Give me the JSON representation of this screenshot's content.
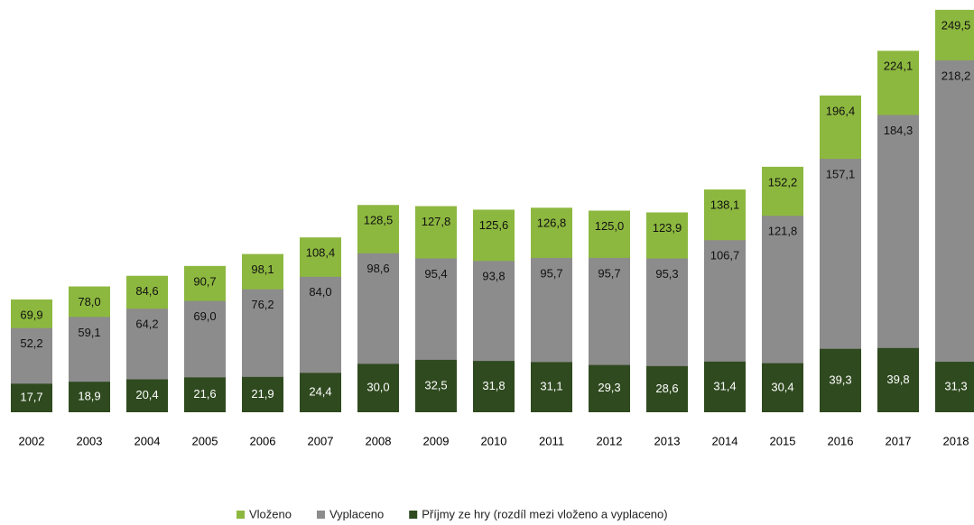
{
  "chart_data": {
    "type": "overlap-bar",
    "categories": [
      "2002",
      "2003",
      "2004",
      "2005",
      "2006",
      "2007",
      "2008",
      "2009",
      "2010",
      "2011",
      "2012",
      "2013",
      "2014",
      "2015",
      "2016",
      "2017",
      "2018"
    ],
    "ylim": [
      0,
      250
    ],
    "series": [
      {
        "name": "Vloženo",
        "color": "#8db83f",
        "values": [
          69.9,
          78.0,
          84.6,
          90.7,
          98.1,
          108.4,
          128.5,
          127.8,
          125.6,
          126.8,
          125.0,
          123.9,
          138.1,
          152.2,
          196.4,
          224.1,
          249.5
        ],
        "value_labels": [
          "69,9",
          "78,0",
          "84,6",
          "90,7",
          "98,1",
          "108,4",
          "128,5",
          "127,8",
          "125,6",
          "126,8",
          "125,0",
          "123,9",
          "138,1",
          "152,2",
          "196,4",
          "224,1",
          "249,5"
        ]
      },
      {
        "name": "Vyplaceno",
        "color": "#8c8c8c",
        "values": [
          52.2,
          59.1,
          64.2,
          69.0,
          76.2,
          84.0,
          98.6,
          95.4,
          93.8,
          95.7,
          95.7,
          95.3,
          106.7,
          121.8,
          157.1,
          184.3,
          218.2
        ],
        "value_labels": [
          "52,2",
          "59,1",
          "64,2",
          "69,0",
          "76,2",
          "84,0",
          "98,6",
          "95,4",
          "93,8",
          "95,7",
          "95,7",
          "95,3",
          "106,7",
          "121,8",
          "157,1",
          "184,3",
          "218,2"
        ]
      },
      {
        "name": "Příjmy ze hry (rozdíl mezi vloženo a vyplaceno)",
        "color": "#2f4a1f",
        "values": [
          17.7,
          18.9,
          20.4,
          21.6,
          21.9,
          24.4,
          30.0,
          32.5,
          31.8,
          31.1,
          29.3,
          28.6,
          31.4,
          30.4,
          39.3,
          39.8,
          31.3
        ],
        "value_labels": [
          "17,7",
          "18,9",
          "20,4",
          "21,6",
          "21,9",
          "24,4",
          "30,0",
          "32,5",
          "31,8",
          "31,1",
          "29,3",
          "28,6",
          "31,4",
          "30,4",
          "39,3",
          "39,8",
          "31,3"
        ]
      }
    ]
  }
}
